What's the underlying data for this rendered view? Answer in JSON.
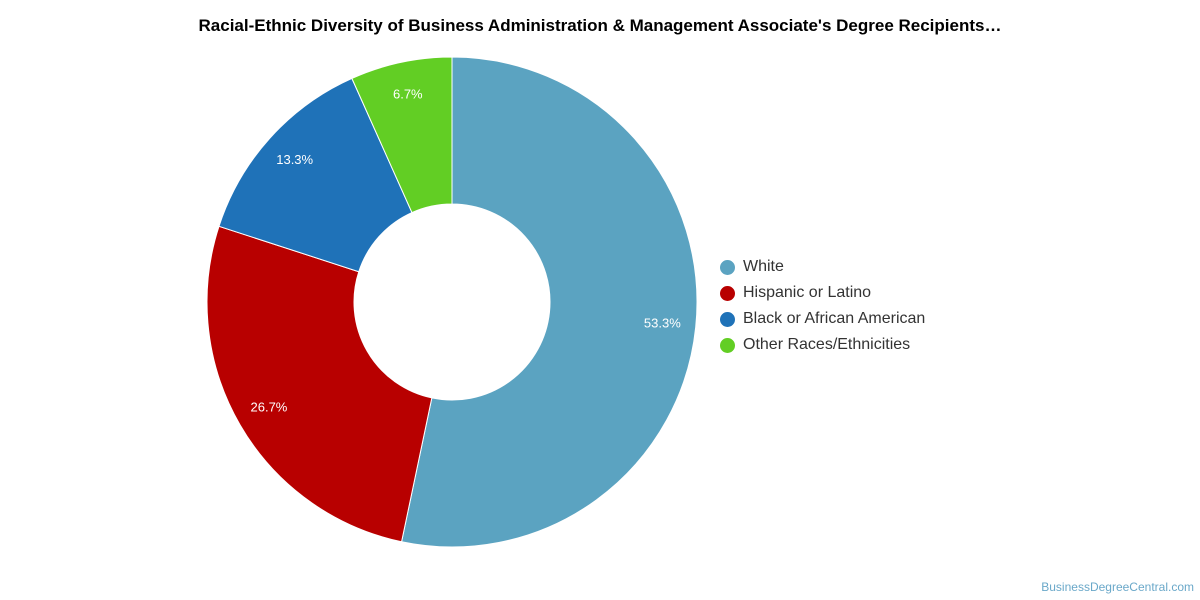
{
  "chart_data": {
    "type": "pie",
    "title": "Racial-Ethnic Diversity of Business Administration & Management Associate's Degree Recipients…",
    "donut": true,
    "slices": [
      {
        "name": "White",
        "value": 53.3,
        "label": "53.3%",
        "color": "#5ba3c1"
      },
      {
        "name": "Hispanic or Latino",
        "value": 26.7,
        "label": "26.7%",
        "color": "#b80000"
      },
      {
        "name": "Black or African American",
        "value": 13.3,
        "label": "13.3%",
        "color": "#1f72b8"
      },
      {
        "name": "Other Races/Ethnicities",
        "value": 6.7,
        "label": "6.7%",
        "color": "#62ce24"
      }
    ],
    "legend_position": "right"
  },
  "footer": {
    "credit": "BusinessDegreeCentral.com"
  }
}
